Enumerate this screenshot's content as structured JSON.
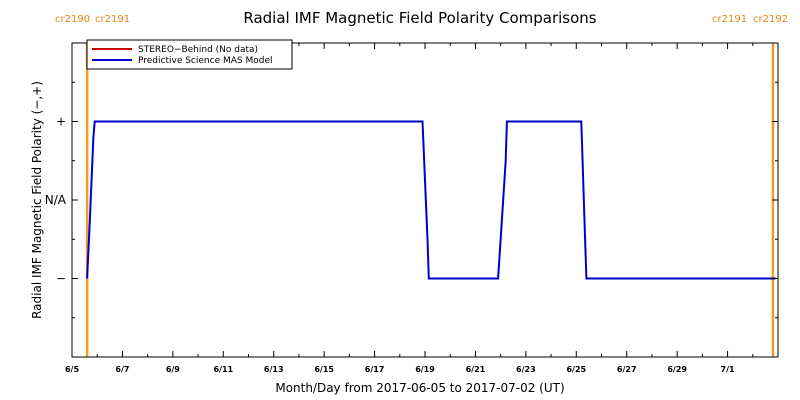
{
  "chart_data": {
    "type": "line",
    "title": "Radial IMF Magnetic Field Polarity Comparisons",
    "xlabel": "Month/Day from 2017-06-05 to 2017-07-02 (UT)",
    "ylabel": "Radial IMF Magnetic Field Polarity (−,+)",
    "xlim": [
      0,
      28
    ],
    "ylim": [
      -2,
      2
    ],
    "x_ticks": [
      {
        "x": 0,
        "label": "6/5"
      },
      {
        "x": 2,
        "label": "6/7"
      },
      {
        "x": 4,
        "label": "6/9"
      },
      {
        "x": 6,
        "label": "6/11"
      },
      {
        "x": 8,
        "label": "6/13"
      },
      {
        "x": 10,
        "label": "6/15"
      },
      {
        "x": 12,
        "label": "6/17"
      },
      {
        "x": 14,
        "label": "6/19"
      },
      {
        "x": 16,
        "label": "6/21"
      },
      {
        "x": 18,
        "label": "6/23"
      },
      {
        "x": 20,
        "label": "6/25"
      },
      {
        "x": 22,
        "label": "6/27"
      },
      {
        "x": 24,
        "label": "6/29"
      },
      {
        "x": 26,
        "label": "7/1"
      }
    ],
    "y_ticks": [
      {
        "y": 1,
        "label": "+"
      },
      {
        "y": 0,
        "label": "N/A"
      },
      {
        "y": -1,
        "label": "−"
      }
    ],
    "legend_position": "top-left",
    "series": [
      {
        "name": "STEREO−Behind (No data)",
        "color": "#cc0000",
        "x": [],
        "y": []
      },
      {
        "name": "Predictive Science MAS Model",
        "color": "#0000cc",
        "x": [
          0.6,
          0.7,
          0.85,
          0.9,
          13.9,
          14.1,
          14.15,
          16.9,
          17.2,
          17.25,
          20.2,
          20.35,
          20.4,
          27.9
        ],
        "y": [
          -1,
          -0.3,
          0.8,
          1,
          1,
          -0.5,
          -1,
          -1,
          0.5,
          1,
          1,
          -0.5,
          -1,
          -1
        ]
      }
    ],
    "carrington_boundaries": [
      {
        "x": 0.6,
        "color": "#f59a23"
      },
      {
        "x": 27.8,
        "color": "#f59a23"
      }
    ],
    "carrington_labels_left": [
      "cr2190",
      "cr2191"
    ],
    "carrington_labels_right": [
      "cr2191",
      "cr2192"
    ],
    "annotation_color": "#e08a10"
  }
}
